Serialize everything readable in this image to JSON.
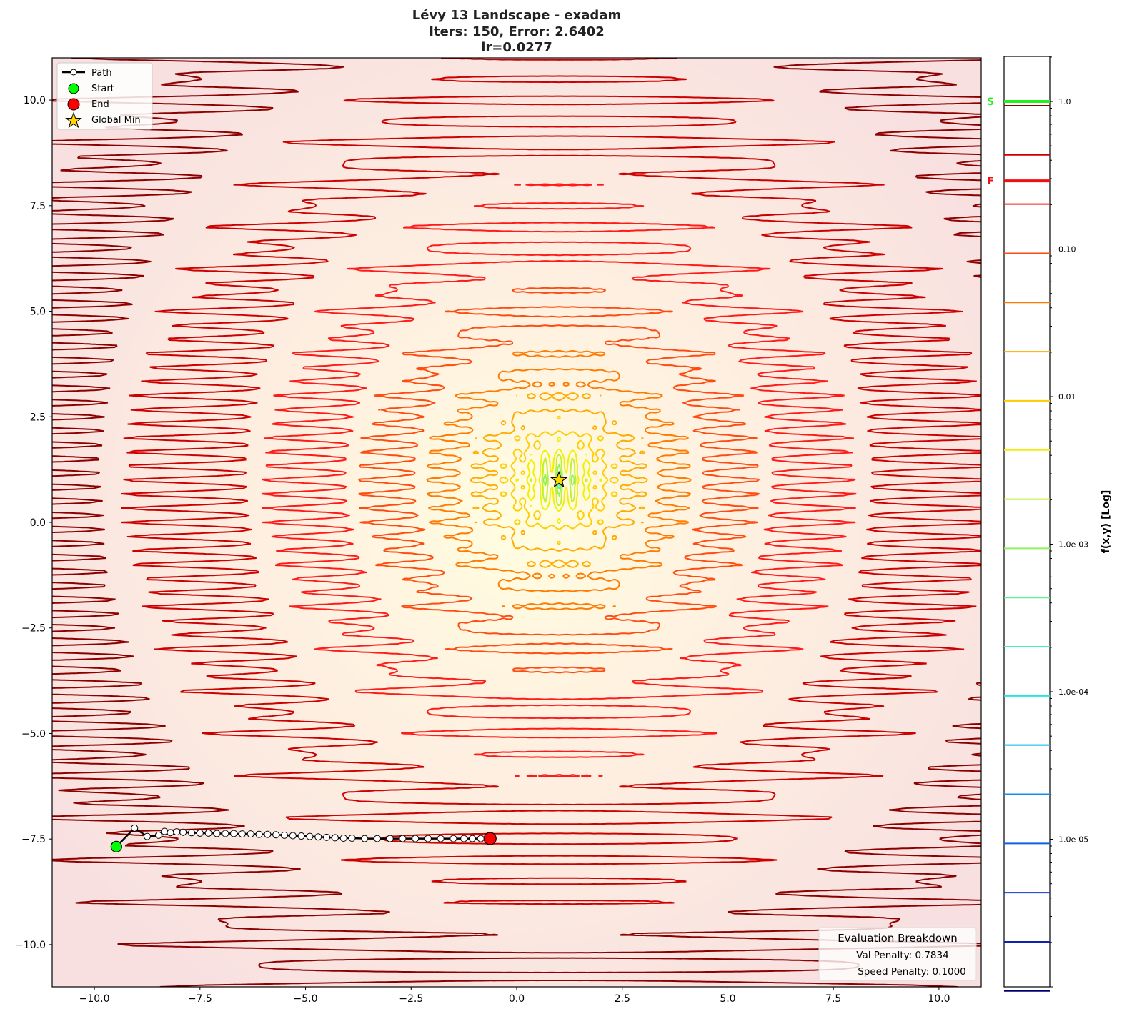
{
  "chart_data": {
    "type": "contour",
    "title_lines": [
      "Lévy 13 Landscape - exadam",
      "Iters: 150, Error: 2.6402",
      "lr=0.0277"
    ],
    "xlim": [
      -11,
      11
    ],
    "ylim": [
      -11,
      11
    ],
    "xticks": [
      -10,
      -7.5,
      -5,
      -2.5,
      0,
      2.5,
      5,
      7.5,
      10
    ],
    "xtick_labels": [
      "−10.0",
      "−7.5",
      "−5.0",
      "−2.5",
      "0.0",
      "2.5",
      "5.0",
      "7.5",
      "10.0"
    ],
    "yticks": [
      10,
      7.5,
      5,
      2.5,
      0,
      -2.5,
      -5,
      -7.5,
      -10
    ],
    "ytick_labels": [
      "10.0",
      "7.5",
      "5.0",
      "2.5",
      "0.0",
      "−2.5",
      "−5.0",
      "−7.5",
      "−10.0"
    ],
    "function": "levy13",
    "normalization": 250,
    "contour_levels_log10_top": -0.0287,
    "contour_levels_step_decades": 0.3333,
    "contour_level_count": 19,
    "contour_colors": [
      "#8b0000",
      "#cc0000",
      "#ff1a1a",
      "#ff4a10",
      "#ff7a00",
      "#ffaa00",
      "#ffcc00",
      "#f0f000",
      "#c0f030",
      "#90f060",
      "#60f090",
      "#40f0c0",
      "#20e8e0",
      "#00b8f0",
      "#1090f0",
      "#1060e0",
      "#1038d0",
      "#1020b0",
      "#000070"
    ],
    "global_min": [
      1,
      1
    ],
    "path": [
      [
        -9.48,
        -7.68
      ],
      [
        -9.05,
        -7.24
      ],
      [
        -8.75,
        -7.44
      ],
      [
        -8.48,
        -7.41
      ],
      [
        -8.34,
        -7.32
      ],
      [
        -8.2,
        -7.35
      ],
      [
        -8.05,
        -7.33
      ],
      [
        -7.9,
        -7.34
      ],
      [
        -7.7,
        -7.35
      ],
      [
        -7.5,
        -7.36
      ],
      [
        -7.3,
        -7.36
      ],
      [
        -7.1,
        -7.37
      ],
      [
        -6.9,
        -7.37
      ],
      [
        -6.7,
        -7.37
      ],
      [
        -6.5,
        -7.38
      ],
      [
        -6.3,
        -7.38
      ],
      [
        -6.1,
        -7.39
      ],
      [
        -5.9,
        -7.39
      ],
      [
        -5.7,
        -7.4
      ],
      [
        -5.5,
        -7.41
      ],
      [
        -5.3,
        -7.42
      ],
      [
        -5.1,
        -7.43
      ],
      [
        -4.9,
        -7.44
      ],
      [
        -4.7,
        -7.45
      ],
      [
        -4.5,
        -7.46
      ],
      [
        -4.3,
        -7.47
      ],
      [
        -4.1,
        -7.48
      ],
      [
        -3.9,
        -7.48
      ],
      [
        -3.6,
        -7.49
      ],
      [
        -3.3,
        -7.49
      ],
      [
        -3.0,
        -7.49
      ],
      [
        -2.7,
        -7.49
      ],
      [
        -2.4,
        -7.49
      ],
      [
        -2.1,
        -7.49
      ],
      [
        -1.8,
        -7.49
      ],
      [
        -1.5,
        -7.49
      ],
      [
        -1.25,
        -7.49
      ],
      [
        -1.05,
        -7.49
      ],
      [
        -0.85,
        -7.49
      ],
      [
        -0.63,
        -7.49
      ]
    ],
    "legend": {
      "placement": "upper-left",
      "entries": [
        "Path",
        "Start",
        "End",
        "Global Min"
      ]
    },
    "colorbar": {
      "label": "f(x,y) [Log]",
      "scale": "log",
      "range": [
        1e-06,
        2.02
      ],
      "ticks": [
        1.0,
        0.1,
        0.01,
        0.001,
        0.0001,
        1e-05
      ],
      "tick_labels": [
        "1.0",
        "0.10",
        "0.01",
        "1.0e-03",
        "1.0e-04",
        "1.0e-05"
      ],
      "start_marker": {
        "label": "S",
        "value": 1.0,
        "color": "#22ee22"
      },
      "final_marker": {
        "label": "F",
        "value": 0.29,
        "color": "#ee1111"
      }
    },
    "evaluation_box": {
      "title": "Evaluation Breakdown",
      "lines": [
        "Val Penalty: 0.7834",
        "Speed Penalty: 0.1000"
      ]
    },
    "colors": {
      "start": "#00ff00",
      "end": "#ff0000",
      "star": "#ffd700",
      "path": "#000000"
    }
  }
}
